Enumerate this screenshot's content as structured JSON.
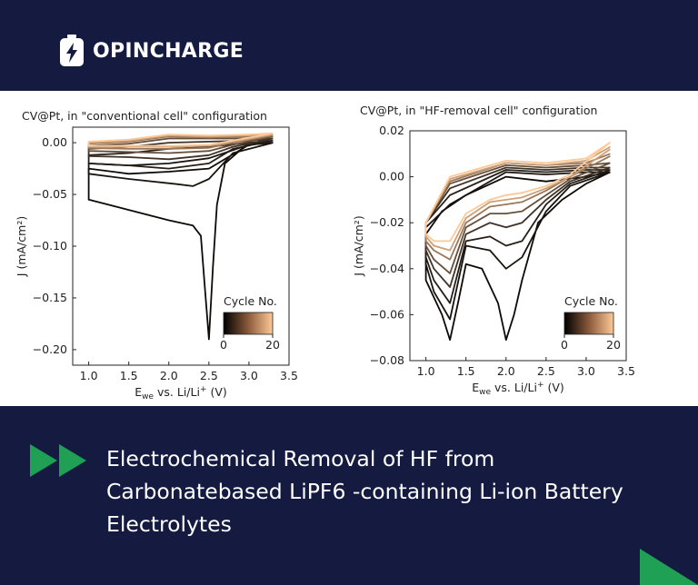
{
  "brand": {
    "name": "OPINCHARGE",
    "logo_icon": "battery-bolt-icon"
  },
  "headline": "Electrochemical Removal of HF from Carbonatebased LiPF6 -containing Li-ion Battery Electrolytes",
  "colors": {
    "background": "#141a40",
    "accent_green": "#1fa055",
    "cycle_start": "#000000",
    "cycle_end": "#ffc896"
  },
  "chart_data": [
    {
      "type": "line",
      "title": "CV@Pt, in \"conventional cell\" configuration",
      "xlabel_main": "E",
      "xlabel_sub": "we",
      "xlabel_rest": " vs. Li/Li",
      "xlabel_sup": "+",
      "xlabel_unit": " (V)",
      "ylabel": "J (mA/cm²)",
      "xlim": [
        0.8,
        3.5
      ],
      "ylim": [
        -0.215,
        0.015
      ],
      "xticks": [
        1.0,
        1.5,
        2.0,
        2.5,
        3.0,
        3.5
      ],
      "xtick_labels": [
        "1.0",
        "1.5",
        "2.0",
        "2.5",
        "3.0",
        "3.5"
      ],
      "yticks": [
        0.0,
        -0.05,
        -0.1,
        -0.15,
        -0.2
      ],
      "ytick_labels": [
        "0.00",
        "−0.05",
        "−0.10",
        "−0.15",
        "−0.20"
      ],
      "legend": {
        "title": "Cycle No.",
        "min_label": "0",
        "max_label": "20",
        "position": "bottom-left"
      },
      "series": [
        {
          "cycle": 1,
          "x": [
            3.3,
            3.0,
            2.7,
            2.6,
            2.55,
            2.5,
            2.45,
            2.4,
            2.3,
            2.0,
            1.5,
            1.0,
            1.0,
            1.5,
            2.0,
            2.5,
            3.0,
            3.3
          ],
          "y": [
            0.0,
            0.0,
            -0.02,
            -0.06,
            -0.12,
            -0.19,
            -0.14,
            -0.09,
            -0.08,
            -0.075,
            -0.065,
            -0.055,
            -0.025,
            -0.03,
            -0.028,
            -0.025,
            -0.002,
            0.0
          ]
        },
        {
          "cycle": 2,
          "x": [
            3.3,
            2.8,
            2.5,
            2.3,
            2.1,
            1.5,
            1.0,
            1.0,
            1.5,
            2.0,
            2.5,
            3.0,
            3.3
          ],
          "y": [
            0.0,
            -0.01,
            -0.035,
            -0.042,
            -0.04,
            -0.035,
            -0.03,
            -0.02,
            -0.022,
            -0.02,
            -0.015,
            -0.002,
            0.0
          ]
        },
        {
          "cycle": 3,
          "x": [
            3.3,
            2.8,
            2.5,
            2.0,
            1.5,
            1.0,
            1.0,
            1.5,
            2.0,
            2.5,
            3.0,
            3.3
          ],
          "y": [
            0.002,
            -0.006,
            -0.02,
            -0.025,
            -0.022,
            -0.02,
            -0.012,
            -0.01,
            -0.006,
            -0.004,
            0.0,
            0.002
          ]
        },
        {
          "cycle": 5,
          "x": [
            3.3,
            2.8,
            2.5,
            2.0,
            1.5,
            1.0,
            1.0,
            1.5,
            2.0,
            2.5,
            3.0,
            3.3
          ],
          "y": [
            0.004,
            -0.004,
            -0.012,
            -0.016,
            -0.014,
            -0.013,
            -0.006,
            -0.004,
            0.0,
            0.001,
            0.002,
            0.004
          ]
        },
        {
          "cycle": 8,
          "x": [
            3.3,
            2.8,
            2.5,
            2.0,
            1.5,
            1.0,
            1.0,
            1.5,
            2.0,
            2.5,
            3.0,
            3.3
          ],
          "y": [
            0.006,
            -0.002,
            -0.008,
            -0.01,
            -0.009,
            -0.008,
            -0.003,
            -0.001,
            0.004,
            0.004,
            0.004,
            0.006
          ]
        },
        {
          "cycle": 12,
          "x": [
            3.3,
            2.8,
            2.5,
            2.0,
            1.5,
            1.0,
            1.0,
            1.5,
            2.0,
            2.5,
            3.0,
            3.3
          ],
          "y": [
            0.007,
            0.0,
            -0.005,
            -0.006,
            -0.006,
            -0.005,
            -0.001,
            0.001,
            0.006,
            0.005,
            0.006,
            0.007
          ]
        },
        {
          "cycle": 16,
          "x": [
            3.3,
            2.8,
            2.5,
            2.0,
            1.5,
            1.0,
            1.0,
            1.5,
            2.0,
            2.5,
            3.0,
            3.3
          ],
          "y": [
            0.008,
            0.001,
            -0.003,
            -0.004,
            -0.004,
            -0.004,
            0.0,
            0.002,
            0.007,
            0.006,
            0.007,
            0.008
          ]
        },
        {
          "cycle": 20,
          "x": [
            3.3,
            2.8,
            2.5,
            2.0,
            1.5,
            1.0,
            1.0,
            1.5,
            2.0,
            2.5,
            3.0,
            3.3
          ],
          "y": [
            0.009,
            0.002,
            -0.002,
            -0.003,
            -0.003,
            -0.003,
            0.001,
            0.003,
            0.008,
            0.007,
            0.008,
            0.009
          ]
        }
      ]
    },
    {
      "type": "line",
      "title": "CV@Pt, in \"HF-removal cell\" configuration",
      "xlabel_main": "E",
      "xlabel_sub": "we",
      "xlabel_rest": " vs. Li/Li",
      "xlabel_sup": "+",
      "xlabel_unit": " (V)",
      "ylabel": "J (mA/cm²)",
      "xlim": [
        0.8,
        3.5
      ],
      "ylim": [
        -0.08,
        0.02
      ],
      "xticks": [
        1.0,
        1.5,
        2.0,
        2.5,
        3.0,
        3.5
      ],
      "xtick_labels": [
        "1.0",
        "1.5",
        "2.0",
        "2.5",
        "3.0",
        "3.5"
      ],
      "yticks": [
        0.02,
        0.0,
        -0.02,
        -0.04,
        -0.06,
        -0.08
      ],
      "ytick_labels": [
        "0.02",
        "0.00",
        "−0.02",
        "−0.04",
        "−0.06",
        "−0.08"
      ],
      "legend": {
        "title": "Cycle No.",
        "min_label": "0",
        "max_label": "20",
        "position": "bottom-right"
      },
      "series": [
        {
          "cycle": 1,
          "x": [
            3.3,
            3.0,
            2.7,
            2.4,
            2.2,
            2.1,
            2.0,
            1.9,
            1.7,
            1.5,
            1.4,
            1.3,
            1.2,
            1.0,
            1.0,
            1.2,
            1.5,
            2.0,
            2.5,
            3.0,
            3.3
          ],
          "y": [
            0.002,
            -0.003,
            -0.01,
            -0.02,
            -0.045,
            -0.06,
            -0.071,
            -0.055,
            -0.04,
            -0.038,
            -0.055,
            -0.071,
            -0.06,
            -0.045,
            -0.025,
            -0.015,
            -0.008,
            0.0,
            -0.002,
            0.0,
            0.002
          ]
        },
        {
          "cycle": 2,
          "x": [
            3.3,
            2.8,
            2.5,
            2.2,
            2.0,
            1.8,
            1.5,
            1.3,
            1.1,
            1.0,
            1.0,
            1.3,
            2.0,
            2.5,
            3.0,
            3.3
          ],
          "y": [
            0.002,
            -0.004,
            -0.015,
            -0.035,
            -0.04,
            -0.032,
            -0.03,
            -0.062,
            -0.05,
            -0.038,
            -0.022,
            -0.012,
            0.002,
            0.001,
            0.002,
            0.002
          ]
        },
        {
          "cycle": 3,
          "x": [
            3.3,
            2.8,
            2.5,
            2.2,
            2.0,
            1.8,
            1.5,
            1.3,
            1.1,
            1.0,
            1.0,
            1.3,
            2.0,
            2.5,
            3.0,
            3.3
          ],
          "y": [
            0.003,
            -0.003,
            -0.012,
            -0.028,
            -0.03,
            -0.026,
            -0.028,
            -0.055,
            -0.045,
            -0.035,
            -0.02,
            -0.008,
            0.003,
            0.002,
            0.003,
            0.003
          ]
        },
        {
          "cycle": 5,
          "x": [
            3.3,
            2.8,
            2.5,
            2.2,
            2.0,
            1.8,
            1.5,
            1.3,
            1.1,
            1.0,
            1.0,
            1.3,
            2.0,
            2.5,
            3.0,
            3.3
          ],
          "y": [
            0.004,
            -0.002,
            -0.01,
            -0.02,
            -0.022,
            -0.02,
            -0.025,
            -0.048,
            -0.04,
            -0.032,
            -0.02,
            -0.005,
            0.004,
            0.003,
            0.004,
            0.004
          ]
        },
        {
          "cycle": 8,
          "x": [
            3.3,
            2.8,
            2.5,
            2.2,
            2.0,
            1.8,
            1.5,
            1.3,
            1.1,
            1.0,
            1.0,
            1.3,
            2.0,
            2.5,
            3.0,
            3.3
          ],
          "y": [
            0.006,
            -0.001,
            -0.008,
            -0.015,
            -0.016,
            -0.016,
            -0.022,
            -0.042,
            -0.036,
            -0.03,
            -0.02,
            -0.003,
            0.005,
            0.004,
            0.005,
            0.006
          ]
        },
        {
          "cycle": 12,
          "x": [
            3.3,
            2.8,
            2.5,
            2.2,
            2.0,
            1.8,
            1.5,
            1.3,
            1.1,
            1.0,
            1.0,
            1.3,
            2.0,
            2.5,
            3.0,
            3.3
          ],
          "y": [
            0.009,
            0.0,
            -0.006,
            -0.011,
            -0.012,
            -0.013,
            -0.02,
            -0.036,
            -0.032,
            -0.028,
            -0.02,
            -0.002,
            0.006,
            0.005,
            0.006,
            0.01
          ]
        },
        {
          "cycle": 16,
          "x": [
            3.3,
            2.8,
            2.5,
            2.2,
            2.0,
            1.8,
            1.5,
            1.3,
            1.1,
            1.0,
            1.0,
            1.3,
            2.0,
            2.5,
            3.0,
            3.3
          ],
          "y": [
            0.012,
            0.0,
            -0.005,
            -0.009,
            -0.01,
            -0.011,
            -0.018,
            -0.032,
            -0.03,
            -0.026,
            -0.02,
            -0.001,
            0.006,
            0.005,
            0.007,
            0.013
          ]
        },
        {
          "cycle": 20,
          "x": [
            3.3,
            2.8,
            2.5,
            2.2,
            2.0,
            1.8,
            1.5,
            1.3,
            1.1,
            1.0,
            1.0,
            1.3,
            2.0,
            2.5,
            3.0,
            3.3
          ],
          "y": [
            0.015,
            0.001,
            -0.004,
            -0.007,
            -0.008,
            -0.01,
            -0.016,
            -0.028,
            -0.028,
            -0.025,
            -0.02,
            0.0,
            0.007,
            0.006,
            0.008,
            0.015
          ]
        }
      ]
    }
  ]
}
